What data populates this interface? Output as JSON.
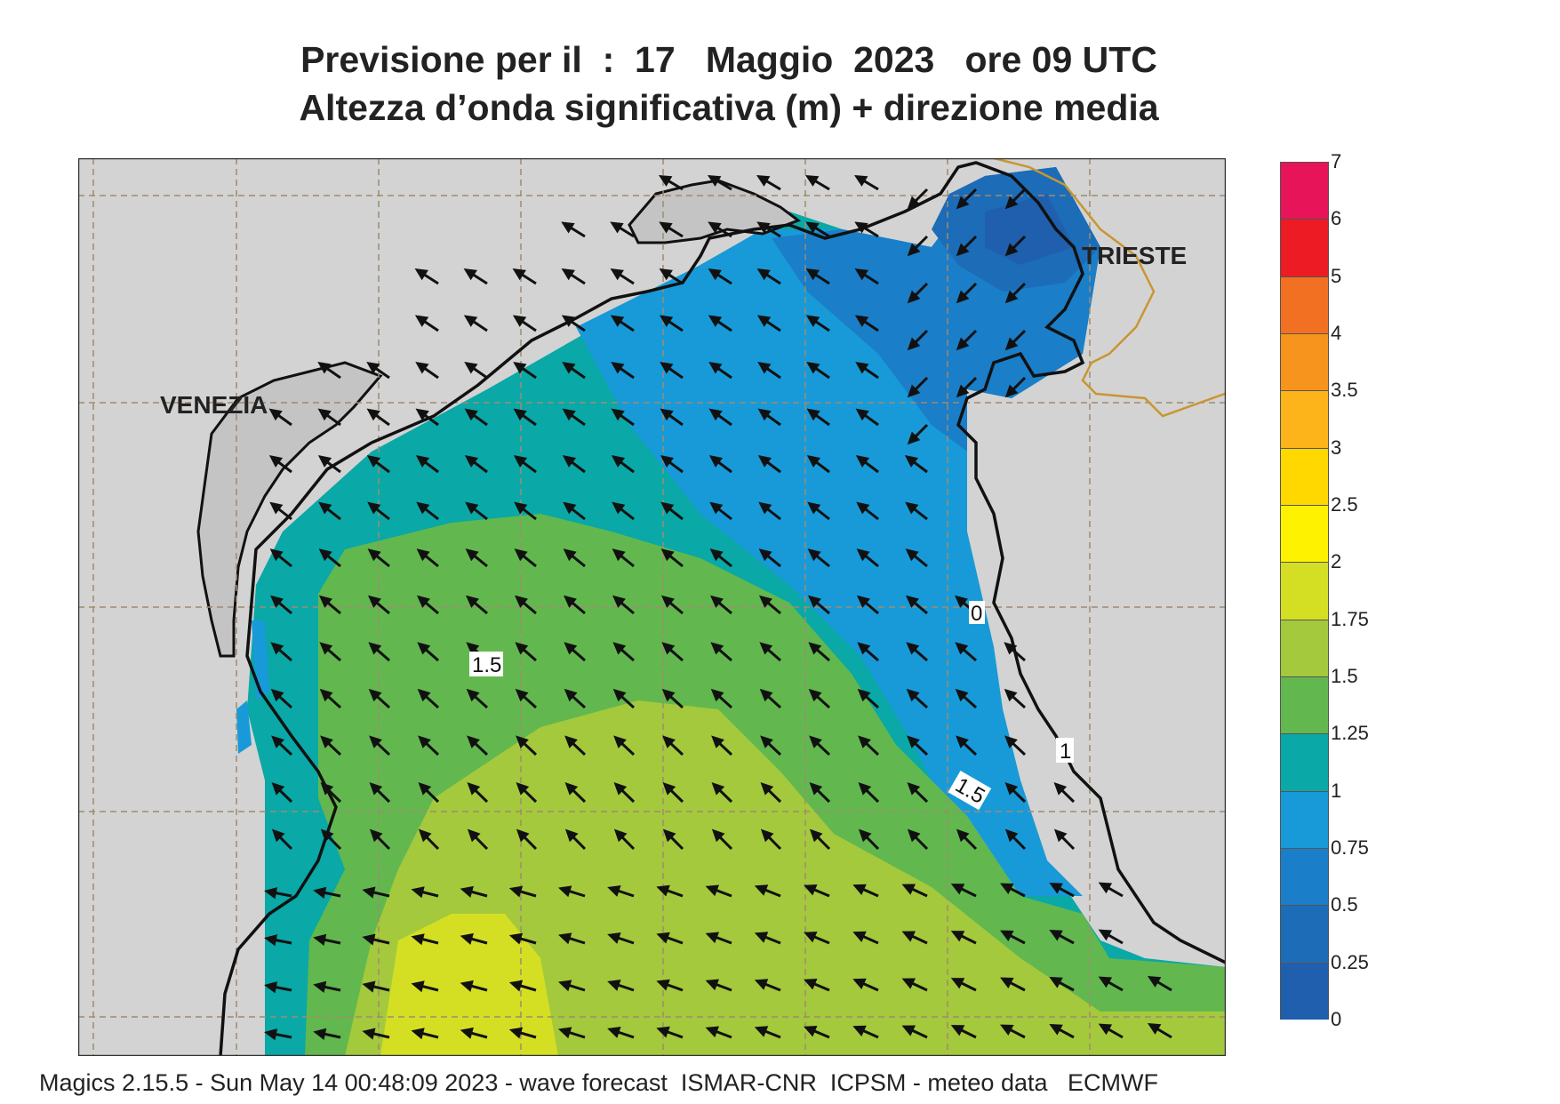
{
  "title": {
    "line1": "Previsione per il  :  17   Maggio  2023   ore 09 UTC",
    "line2": "Altezza d’onda significativa (m) + direzione media"
  },
  "map": {
    "cities": [
      {
        "name": "VENEZIA"
      },
      {
        "name": "TRIESTE"
      }
    ],
    "contour_labels": [
      "0",
      "1",
      "1.5",
      "1.5"
    ],
    "colors": {
      "land": "#d3d3d3",
      "lagoon": "#c8c8c8",
      "grid": "#a08a70",
      "border": "#c89632",
      "coast": "#111111"
    }
  },
  "legend": {
    "levels": [
      {
        "value": "0",
        "color": "#1f5fae"
      },
      {
        "value": "0.25",
        "color": "#1c6cb8"
      },
      {
        "value": "0.5",
        "color": "#1a7ec8"
      },
      {
        "value": "0.75",
        "color": "#189ad8"
      },
      {
        "value": "1",
        "color": "#0aa8a6"
      },
      {
        "value": "1.25",
        "color": "#62b84e"
      },
      {
        "value": "1.5",
        "color": "#a4c93c"
      },
      {
        "value": "1.75",
        "color": "#d4df24"
      },
      {
        "value": "2",
        "color": "#fff200"
      },
      {
        "value": "2.5",
        "color": "#ffd800"
      },
      {
        "value": "3",
        "color": "#fdb41a"
      },
      {
        "value": "3.5",
        "color": "#f7941d"
      },
      {
        "value": "4",
        "color": "#f27021"
      },
      {
        "value": "5",
        "color": "#ed1c24"
      },
      {
        "value": "6",
        "color": "#e8145a"
      },
      {
        "value": "7",
        "color": ""
      }
    ]
  },
  "footer": "Magics 2.15.5 - Sun May 14 00:48:09 2023 - wave forecast  ISMAR-CNR  ICPSM - meteo data   ECMWF"
}
